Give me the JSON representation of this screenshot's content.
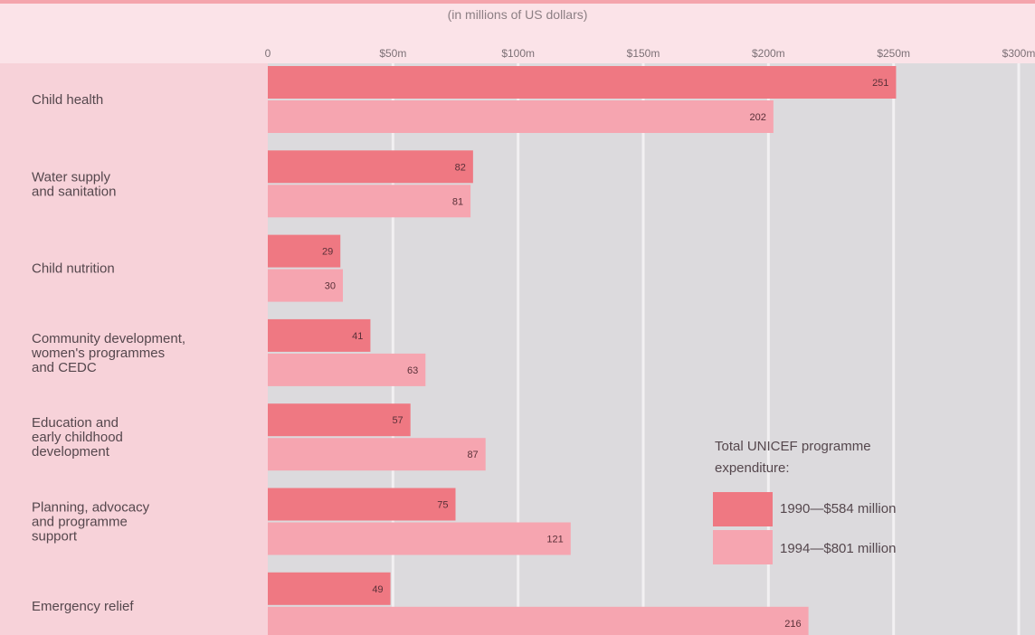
{
  "chart_data": {
    "type": "bar",
    "orientation": "horizontal",
    "subtitle": "(in millions of US dollars)",
    "x_ticks": [
      "0",
      "$50m",
      "$100m",
      "$150m",
      "$200m",
      "$250m",
      "$300m"
    ],
    "xlim": [
      0,
      300
    ],
    "grid": true,
    "categories": [
      [
        "Child health"
      ],
      [
        "Water supply",
        "and sanitation"
      ],
      [
        "Child nutrition"
      ],
      [
        "Community development,",
        "women's programmes",
        "and CEDC"
      ],
      [
        "Education and",
        "early childhood",
        "development"
      ],
      [
        "Planning, advocacy",
        "and programme",
        "support"
      ],
      [
        "Emergency relief"
      ]
    ],
    "series": [
      {
        "name": "1990—$584 million",
        "color": "#ef7882",
        "values": [
          251,
          82,
          29,
          41,
          57,
          75,
          49
        ]
      },
      {
        "name": "1994—$801 million",
        "color": "#f6a5b0",
        "values": [
          202,
          81,
          30,
          63,
          87,
          121,
          216
        ]
      }
    ],
    "legend": {
      "title_lines": [
        "Total UNICEF programme",
        "expenditure:"
      ],
      "placement": "bottom-right"
    }
  }
}
